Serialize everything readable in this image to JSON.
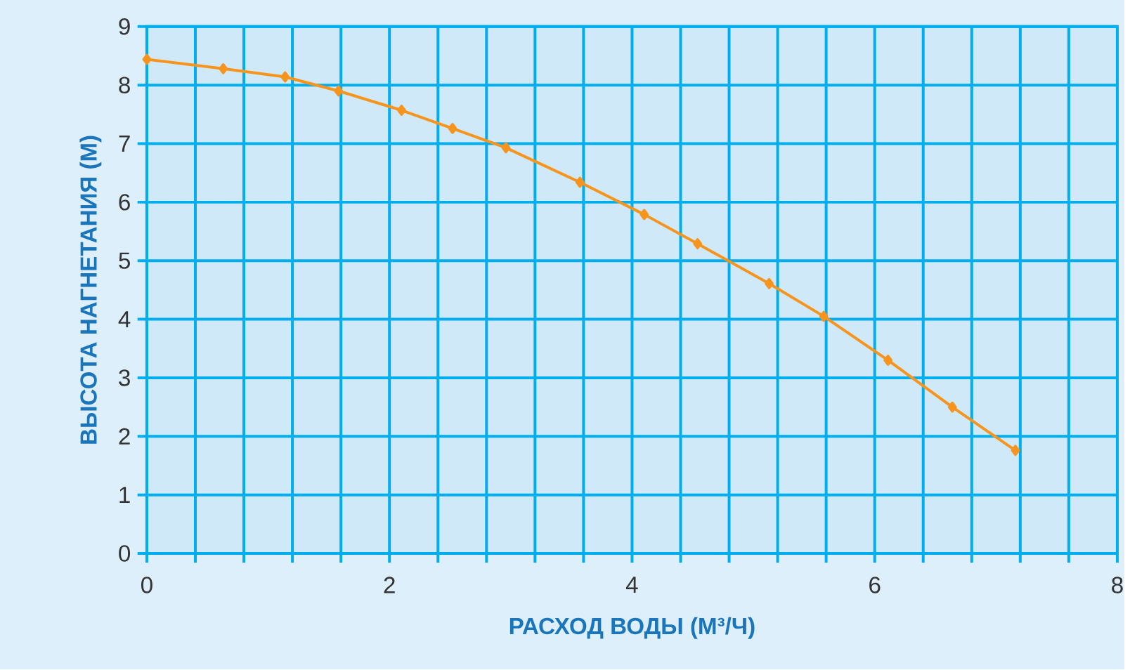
{
  "chart_data": {
    "type": "line",
    "xlabel": "РАСХОД ВОДЫ (М³/Ч)",
    "ylabel": "ВЫСОТА НАГНЕТАНИЯ (М)",
    "x": [
      0,
      0.63,
      1.14,
      1.58,
      2.1,
      2.52,
      2.96,
      3.57,
      4.1,
      4.54,
      5.13,
      5.58,
      6.11,
      6.64,
      7.16
    ],
    "series": [
      {
        "color": "#f7941d",
        "values": [
          8.44,
          8.28,
          8.14,
          7.9,
          7.57,
          7.26,
          6.93,
          6.34,
          5.79,
          5.29,
          4.61,
          4.05,
          3.3,
          2.5,
          1.76
        ]
      }
    ],
    "xlim": [
      0,
      8
    ],
    "ylim": [
      0,
      9
    ],
    "xticks": [
      0,
      {
        "value": 0.4,
        "label": null
      },
      {
        "value": 0.8,
        "label": null
      },
      {
        "value": 1.2,
        "label": null
      },
      {
        "value": 1.6,
        "label": null
      },
      2,
      {
        "value": 2.4,
        "label": null
      },
      {
        "value": 2.8,
        "label": null
      },
      {
        "value": 3.2,
        "label": null
      },
      {
        "value": 3.6,
        "label": null
      },
      4,
      {
        "value": 4.4,
        "label": null
      },
      {
        "value": 4.8,
        "label": null
      },
      {
        "value": 5.2,
        "label": null
      },
      {
        "value": 5.6,
        "label": null
      },
      6,
      {
        "value": 6.4,
        "label": null
      },
      {
        "value": 6.8,
        "label": null
      },
      {
        "value": 7.2,
        "label": null
      },
      {
        "value": 7.6,
        "label": null
      },
      8
    ],
    "yticks": [
      0,
      1,
      2,
      3,
      4,
      5,
      6,
      7,
      8,
      9
    ],
    "grid": true,
    "marker": "diamond",
    "line_style": "solid"
  }
}
